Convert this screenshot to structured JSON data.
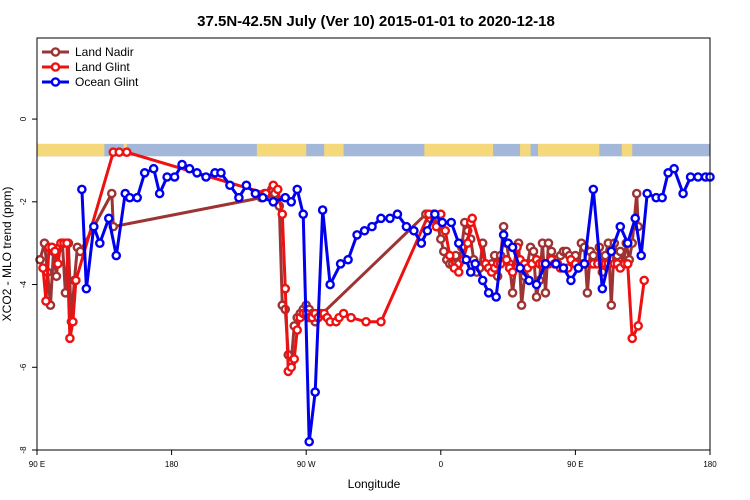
{
  "chart_data": {
    "type": "line",
    "title": "37.5N-42.5N July (Ver 10)   2015-01-01 to 2020-12-18",
    "xlabel": "Longitude",
    "ylabel": "XCO2 - MLO trend (ppm)",
    "xlim": [
      90,
      540
    ],
    "ylim": [
      -8,
      2
    ],
    "x_ticks": [
      {
        "value": 90,
        "label": "90 E"
      },
      {
        "value": 180,
        "label": "180"
      },
      {
        "value": 270,
        "label": "90 W"
      },
      {
        "value": 360,
        "label": "0"
      },
      {
        "value": 450,
        "label": "90 E"
      },
      {
        "value": 540,
        "label": "180"
      }
    ],
    "y_ticks": [
      {
        "value": 0,
        "label": "0"
      },
      {
        "value": -2,
        "label": "-2"
      },
      {
        "value": -4,
        "label": "-4"
      },
      {
        "value": -6,
        "label": "-6"
      },
      {
        "value": -8,
        "label": "-8"
      }
    ],
    "legend_position": "top-left",
    "land_mask_band": {
      "y_center": -0.75,
      "ocean_color": "#a3b8d8",
      "land_color": "#f5d87a",
      "land_ranges": [
        [
          90,
          135
        ],
        [
          148,
          150
        ],
        [
          237,
          270
        ],
        [
          282,
          295
        ],
        [
          349,
          395
        ],
        [
          413,
          420
        ],
        [
          425,
          466
        ],
        [
          481,
          488
        ]
      ]
    },
    "series": [
      {
        "name": "Land Nadir",
        "color": "#9e3333",
        "x": [
          92,
          95,
          97,
          99,
          101,
          103,
          105,
          107,
          109,
          111,
          113,
          115,
          117,
          119,
          140,
          141,
          240,
          242,
          245,
          247,
          249,
          252,
          254,
          256,
          258,
          260,
          262,
          264,
          266,
          268,
          270,
          272,
          274,
          275,
          276,
          278,
          350,
          353,
          355,
          358,
          360,
          362,
          364,
          366,
          368,
          370,
          372,
          374,
          376,
          378,
          380,
          382,
          384,
          386,
          388,
          390,
          392,
          394,
          396,
          398,
          400,
          402,
          404,
          406,
          408,
          410,
          412,
          414,
          416,
          418,
          420,
          422,
          424,
          426,
          428,
          430,
          432,
          434,
          436,
          438,
          440,
          442,
          444,
          446,
          448,
          450,
          452,
          454,
          456,
          458,
          460,
          462,
          464,
          466,
          468,
          470,
          472,
          474,
          476,
          478,
          480,
          482,
          484,
          486,
          488,
          491,
          492
        ],
        "values": [
          -3.4,
          -3.0,
          -3.7,
          -4.5,
          -3.2,
          -3.8,
          -3.1,
          -3.0,
          -4.2,
          -3.0,
          -4.9,
          -3.9,
          -3.1,
          -3.2,
          -1.8,
          -2.6,
          -1.9,
          -1.8,
          -1.8,
          -1.7,
          -1.8,
          -2.1,
          -4.5,
          -4.6,
          -5.7,
          -5.9,
          -5.0,
          -4.8,
          -4.7,
          -4.6,
          -4.5,
          -4.6,
          -4.7,
          -4.8,
          -4.9,
          -4.8,
          -2.3,
          -2.4,
          -2.3,
          -2.6,
          -2.9,
          -3.2,
          -3.4,
          -3.5,
          -3.5,
          -3.3,
          -3.5,
          -3.1,
          -2.5,
          -2.7,
          -2.9,
          -3.4,
          -3.7,
          -3.6,
          -3.0,
          -3.5,
          -3.6,
          -3.5,
          -3.3,
          -3.8,
          -3.3,
          -2.6,
          -3.0,
          -3.5,
          -4.2,
          -3.6,
          -3.0,
          -4.5,
          -3.8,
          -3.5,
          -3.1,
          -3.2,
          -4.3,
          -3.9,
          -3.0,
          -4.2,
          -3.0,
          -3.2,
          -3.4,
          -3.5,
          -3.3,
          -3.2,
          -3.2,
          -3.3,
          -3.4,
          -3.3,
          -3.6,
          -3.0,
          -3.1,
          -4.2,
          -3.2,
          -3.3,
          -3.5,
          -3.1,
          -3.7,
          -3.3,
          -3.0,
          -4.5,
          -3.0,
          -3.3,
          -3.2,
          -3.5,
          -3.0,
          -3.4,
          -3.0,
          -1.8,
          -2.6
        ]
      },
      {
        "name": "Land Glint",
        "color": "#ee1111",
        "x": [
          94,
          96,
          98,
          100,
          102,
          104,
          106,
          108,
          110,
          112,
          114,
          116,
          141,
          145,
          150,
          243,
          248,
          251,
          254,
          256,
          258,
          260,
          262,
          264,
          266,
          268,
          270,
          272,
          274,
          276,
          278,
          280,
          282,
          284,
          286,
          290,
          292,
          295,
          300,
          310,
          320,
          352,
          357,
          360,
          363,
          366,
          369,
          372,
          375,
          378,
          380,
          381,
          390,
          392,
          394,
          396,
          398,
          400,
          404,
          406,
          408,
          411,
          413,
          416,
          418,
          421,
          424,
          426,
          428,
          432,
          434,
          436,
          438,
          440,
          445,
          447,
          450,
          455,
          460,
          462,
          465,
          468,
          470,
          472,
          476,
          478,
          480,
          483,
          485,
          488,
          492,
          496
        ],
        "values": [
          -3.6,
          -4.4,
          -3.1,
          -3.1,
          -3.2,
          -3.5,
          -3.0,
          -3.0,
          -3.0,
          -5.3,
          -4.9,
          -3.9,
          -0.8,
          -0.8,
          -0.8,
          -1.8,
          -1.6,
          -1.7,
          -2.3,
          -4.1,
          -6.1,
          -6.0,
          -5.8,
          -5.1,
          -4.8,
          -4.7,
          -4.7,
          -4.8,
          -4.8,
          -4.7,
          -4.8,
          -4.7,
          -4.7,
          -4.8,
          -4.9,
          -4.9,
          -4.8,
          -4.7,
          -4.8,
          -4.9,
          -4.9,
          -2.3,
          -2.6,
          -2.3,
          -2.7,
          -3.3,
          -3.6,
          -3.7,
          -3.4,
          -3.0,
          -2.5,
          -2.4,
          -3.5,
          -3.6,
          -3.7,
          -3.6,
          -3.5,
          -3.5,
          -3.4,
          -3.6,
          -3.7,
          -3.1,
          -3.4,
          -3.5,
          -3.6,
          -3.5,
          -3.4,
          -3.5,
          -3.5,
          -3.5,
          -3.4,
          -3.5,
          -3.5,
          -3.6,
          -3.6,
          -3.4,
          -3.5,
          -3.5,
          -3.5,
          -3.5,
          -3.5,
          -3.5,
          -3.5,
          -3.5,
          -3.5,
          -3.5,
          -3.6,
          -3.5,
          -3.5,
          -5.3,
          -5.0,
          -3.9
        ]
      },
      {
        "name": "Ocean Glint",
        "color": "#0000ee",
        "x": [
          120,
          123,
          128,
          132,
          138,
          143,
          149,
          152,
          157,
          162,
          168,
          172,
          177,
          182,
          187,
          192,
          197,
          203,
          209,
          213,
          219,
          225,
          230,
          236,
          241,
          248,
          256,
          260,
          264,
          268,
          272,
          276,
          281,
          286,
          293,
          298,
          304,
          309,
          314,
          320,
          326,
          331,
          337,
          342,
          347,
          351,
          356,
          361,
          367,
          372,
          377,
          380,
          383,
          388,
          392,
          397,
          402,
          405,
          408,
          413,
          419,
          424,
          430,
          437,
          442,
          447,
          452,
          456,
          462,
          468,
          474,
          480,
          485,
          490,
          494,
          498,
          504,
          508,
          512,
          516,
          522,
          527,
          532,
          537,
          540
        ],
        "values": [
          -1.7,
          -4.1,
          -2.6,
          -3.0,
          -2.4,
          -3.3,
          -1.8,
          -1.9,
          -1.9,
          -1.3,
          -1.2,
          -1.8,
          -1.4,
          -1.4,
          -1.1,
          -1.2,
          -1.3,
          -1.4,
          -1.3,
          -1.3,
          -1.6,
          -1.9,
          -1.6,
          -1.8,
          -1.9,
          -2.0,
          -1.9,
          -2.0,
          -1.7,
          -2.3,
          -7.8,
          -6.6,
          -2.2,
          -4.0,
          -3.5,
          -3.4,
          -2.8,
          -2.7,
          -2.6,
          -2.4,
          -2.4,
          -2.3,
          -2.6,
          -2.7,
          -3.0,
          -2.7,
          -2.3,
          -2.5,
          -2.5,
          -3.0,
          -3.4,
          -3.7,
          -3.5,
          -3.9,
          -4.2,
          -4.3,
          -2.8,
          -3.0,
          -3.1,
          -3.6,
          -3.9,
          -4.0,
          -3.5,
          -3.5,
          -3.6,
          -3.9,
          -3.6,
          -3.5,
          -1.7,
          -4.1,
          -3.2,
          -2.6,
          -3.0,
          -2.4,
          -3.3,
          -1.8,
          -1.9,
          -1.9,
          -1.3,
          -1.2,
          -1.8,
          -1.4,
          -1.4,
          -1.4,
          -1.4
        ]
      }
    ]
  }
}
